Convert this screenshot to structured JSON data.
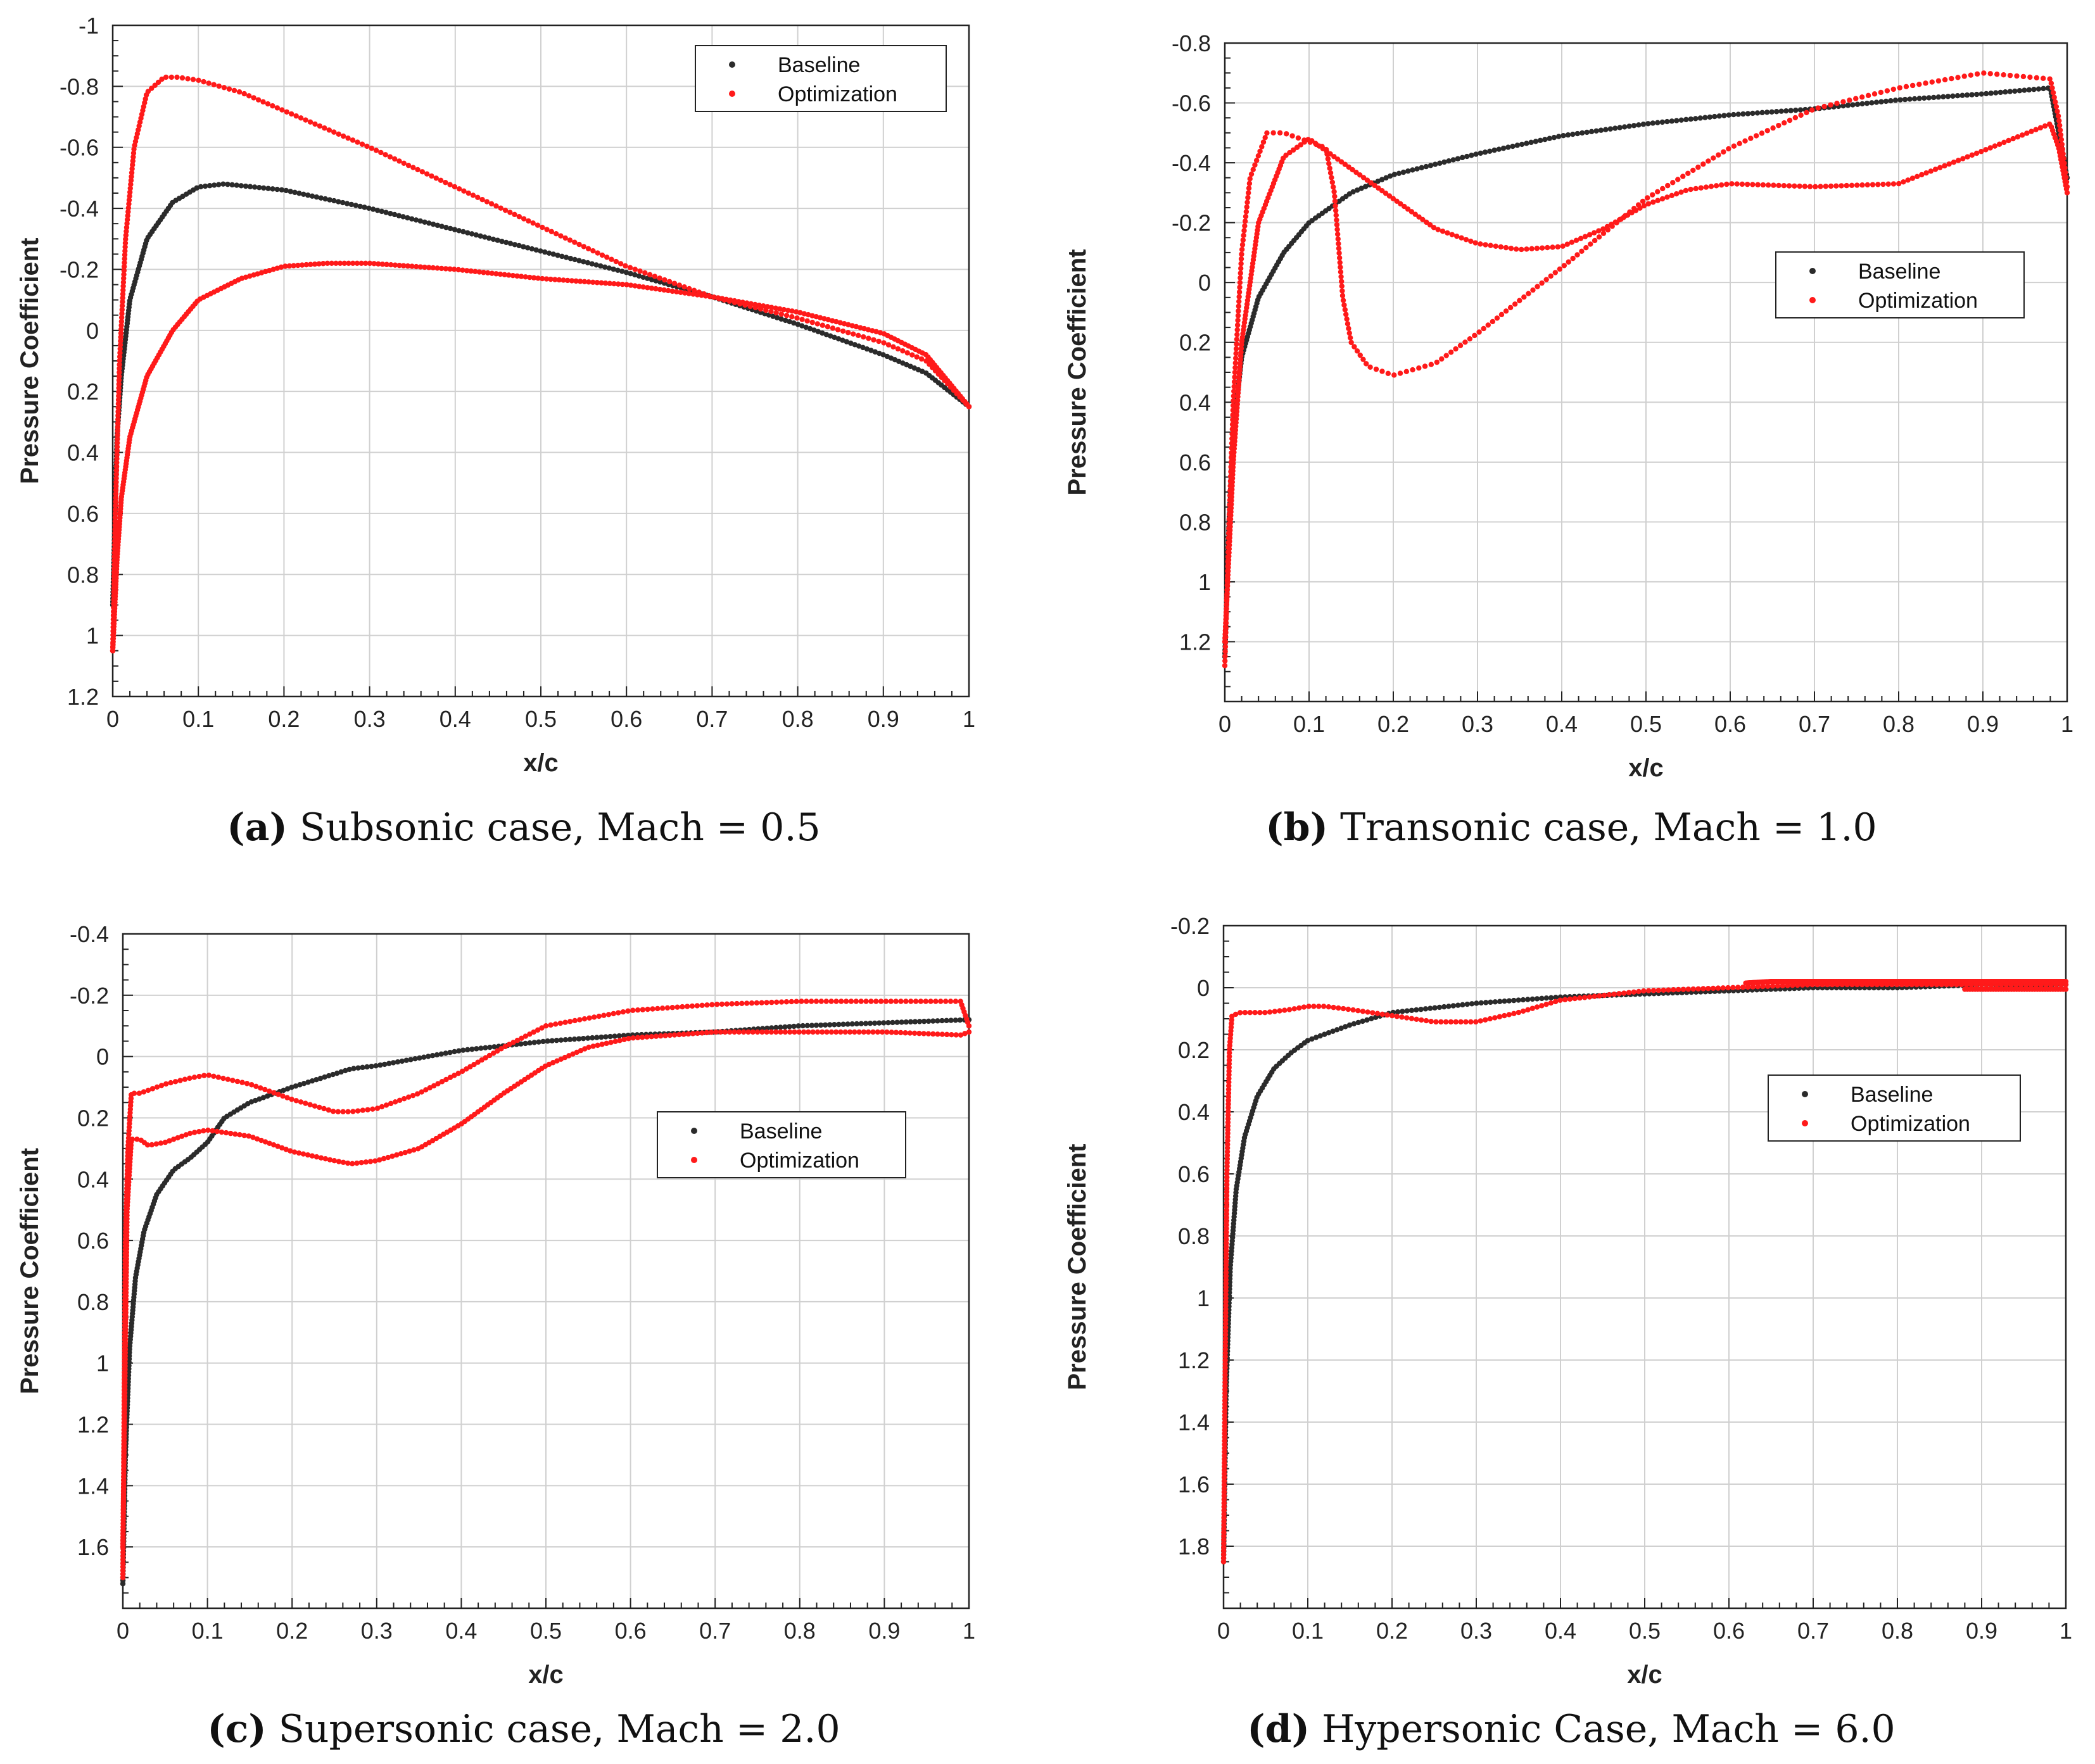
{
  "colors": {
    "baseline": "#2b2b2b",
    "optimization": "#ff1a1a",
    "grid": "#d0d0d0",
    "axis": "#222222"
  },
  "chart_data": [
    {
      "type": "scatter",
      "caption": {
        "letter": "(a)",
        "text": "Subsonic case, Mach = 0.5"
      },
      "xlabel": "x/c",
      "ylabel": "Pressure Coefficient",
      "xlim": [
        0,
        1
      ],
      "ylim": [
        1.2,
        -1
      ],
      "x_ticks": [
        "0",
        "0.1",
        "0.2",
        "0.3",
        "0.4",
        "0.5",
        "0.6",
        "0.7",
        "0.8",
        "0.9",
        "1"
      ],
      "y_ticks": [
        "-1",
        "-0.8",
        "-0.6",
        "-0.4",
        "-0.2",
        "0",
        "0.2",
        "0.4",
        "0.6",
        "0.8",
        "1",
        "1.2"
      ],
      "x_tick_values": [
        0,
        0.1,
        0.2,
        0.3,
        0.4,
        0.5,
        0.6,
        0.7,
        0.8,
        0.9,
        1
      ],
      "y_tick_values": [
        -1,
        -0.8,
        -0.6,
        -0.4,
        -0.2,
        0,
        0.2,
        0.4,
        0.6,
        0.8,
        1,
        1.2
      ],
      "grid": true,
      "legend": {
        "position": "top-right",
        "entries": [
          "Baseline",
          "Optimization"
        ]
      },
      "series": [
        {
          "name": "Baseline",
          "curves": [
            {
              "x": [
                0,
                0.005,
                0.01,
                0.02,
                0.04,
                0.07,
                0.1,
                0.13,
                0.2,
                0.3,
                0.4,
                0.5,
                0.6,
                0.7,
                0.8,
                0.9,
                0.95,
                1
              ],
              "y": [
                0.9,
                0.35,
                0.15,
                -0.1,
                -0.3,
                -0.42,
                -0.47,
                -0.48,
                -0.46,
                -0.4,
                -0.33,
                -0.26,
                -0.19,
                -0.11,
                -0.02,
                0.08,
                0.14,
                0.25
              ]
            }
          ]
        },
        {
          "name": "Optimization",
          "curves": [
            {
              "x": [
                0,
                0.003,
                0.008,
                0.015,
                0.025,
                0.04,
                0.06,
                0.075,
                0.1,
                0.15,
                0.2,
                0.3,
                0.4,
                0.5,
                0.6,
                0.7,
                0.8,
                0.9,
                0.95,
                1
              ],
              "y": [
                1.05,
                0.6,
                0.1,
                -0.3,
                -0.6,
                -0.78,
                -0.83,
                -0.83,
                -0.82,
                -0.78,
                -0.72,
                -0.6,
                -0.47,
                -0.34,
                -0.21,
                -0.11,
                -0.04,
                0.04,
                0.1,
                0.25
              ]
            },
            {
              "x": [
                0,
                0.005,
                0.01,
                0.02,
                0.04,
                0.07,
                0.1,
                0.15,
                0.2,
                0.25,
                0.3,
                0.4,
                0.5,
                0.6,
                0.7,
                0.8,
                0.9,
                0.95,
                1
              ],
              "y": [
                1.05,
                0.75,
                0.55,
                0.35,
                0.15,
                0.0,
                -0.1,
                -0.17,
                -0.21,
                -0.22,
                -0.22,
                -0.2,
                -0.17,
                -0.15,
                -0.11,
                -0.06,
                0.01,
                0.08,
                0.25
              ]
            }
          ]
        }
      ]
    },
    {
      "type": "scatter",
      "caption": {
        "letter": "(b)",
        "text": "Transonic case, Mach = 1.0"
      },
      "xlabel": "x/c",
      "ylabel": "Pressure Coefficient",
      "xlim": [
        0,
        1
      ],
      "ylim": [
        1.4,
        -0.8
      ],
      "x_ticks": [
        "0",
        "0.1",
        "0.2",
        "0.3",
        "0.4",
        "0.5",
        "0.6",
        "0.7",
        "0.8",
        "0.9",
        "1"
      ],
      "y_ticks": [
        "-0.8",
        "-0.6",
        "-0.4",
        "-0.2",
        "0",
        "0.2",
        "0.4",
        "0.6",
        "0.8",
        "1",
        "1.2"
      ],
      "x_tick_values": [
        0,
        0.1,
        0.2,
        0.3,
        0.4,
        0.5,
        0.6,
        0.7,
        0.8,
        0.9,
        1
      ],
      "y_tick_values": [
        -0.8,
        -0.6,
        -0.4,
        -0.2,
        0,
        0.2,
        0.4,
        0.6,
        0.8,
        1,
        1.2
      ],
      "grid": true,
      "legend": {
        "position": "right",
        "entries": [
          "Baseline",
          "Optimization"
        ]
      },
      "series": [
        {
          "name": "Baseline",
          "curves": [
            {
              "x": [
                0,
                0.005,
                0.01,
                0.02,
                0.04,
                0.07,
                0.1,
                0.15,
                0.2,
                0.3,
                0.4,
                0.5,
                0.6,
                0.7,
                0.8,
                0.9,
                0.98,
                0.99,
                1
              ],
              "y": [
                1.25,
                0.8,
                0.5,
                0.25,
                0.05,
                -0.1,
                -0.2,
                -0.3,
                -0.36,
                -0.43,
                -0.49,
                -0.53,
                -0.56,
                -0.58,
                -0.61,
                -0.63,
                -0.65,
                -0.5,
                -0.35
              ]
            }
          ]
        },
        {
          "name": "Optimization",
          "curves": [
            {
              "x": [
                0,
                0.005,
                0.01,
                0.02,
                0.03,
                0.05,
                0.07,
                0.1,
                0.12,
                0.13,
                0.14,
                0.15,
                0.17,
                0.2,
                0.25,
                0.3,
                0.4,
                0.5,
                0.6,
                0.7,
                0.8,
                0.9,
                0.98,
                0.99,
                1
              ],
              "y": [
                1.28,
                0.8,
                0.4,
                -0.1,
                -0.35,
                -0.5,
                -0.5,
                -0.47,
                -0.45,
                -0.3,
                0.05,
                0.2,
                0.28,
                0.31,
                0.27,
                0.17,
                -0.05,
                -0.28,
                -0.45,
                -0.58,
                -0.65,
                -0.7,
                -0.68,
                -0.55,
                -0.32
              ]
            },
            {
              "x": [
                0,
                0.005,
                0.01,
                0.02,
                0.04,
                0.07,
                0.1,
                0.15,
                0.2,
                0.25,
                0.3,
                0.35,
                0.4,
                0.45,
                0.5,
                0.55,
                0.6,
                0.7,
                0.8,
                0.9,
                0.98,
                0.99,
                1
              ],
              "y": [
                1.2,
                0.9,
                0.6,
                0.2,
                -0.2,
                -0.42,
                -0.48,
                -0.38,
                -0.28,
                -0.18,
                -0.13,
                -0.11,
                -0.12,
                -0.18,
                -0.26,
                -0.31,
                -0.33,
                -0.32,
                -0.33,
                -0.44,
                -0.53,
                -0.45,
                -0.3
              ]
            }
          ]
        }
      ]
    },
    {
      "type": "scatter",
      "caption": {
        "letter": "(c)",
        "text": "Supersonic case, Mach = 2.0"
      },
      "xlabel": "x/c",
      "ylabel": "Pressure Coefficient",
      "xlim": [
        0,
        1
      ],
      "ylim": [
        1.8,
        -0.4
      ],
      "x_ticks": [
        "0",
        "0.1",
        "0.2",
        "0.3",
        "0.4",
        "0.5",
        "0.6",
        "0.7",
        "0.8",
        "0.9",
        "1"
      ],
      "y_ticks": [
        "-0.4",
        "-0.2",
        "0",
        "0.2",
        "0.4",
        "0.6",
        "0.8",
        "1",
        "1.2",
        "1.4",
        "1.6"
      ],
      "x_tick_values": [
        0,
        0.1,
        0.2,
        0.3,
        0.4,
        0.5,
        0.6,
        0.7,
        0.8,
        0.9,
        1
      ],
      "y_tick_values": [
        -0.4,
        -0.2,
        0,
        0.2,
        0.4,
        0.6,
        0.8,
        1,
        1.2,
        1.4,
        1.6
      ],
      "grid": true,
      "legend": {
        "position": "right",
        "entries": [
          "Baseline",
          "Optimization"
        ]
      },
      "series": [
        {
          "name": "Baseline",
          "curves": [
            {
              "x": [
                0,
                0.003,
                0.008,
                0.015,
                0.025,
                0.04,
                0.06,
                0.08,
                0.1,
                0.12,
                0.15,
                0.2,
                0.27,
                0.3,
                0.4,
                0.5,
                0.6,
                0.7,
                0.8,
                0.9,
                1
              ],
              "y": [
                1.72,
                1.3,
                0.95,
                0.72,
                0.57,
                0.45,
                0.37,
                0.33,
                0.28,
                0.2,
                0.15,
                0.1,
                0.04,
                0.03,
                -0.02,
                -0.05,
                -0.07,
                -0.08,
                -0.1,
                -0.11,
                -0.12
              ]
            }
          ]
        },
        {
          "name": "Optimization",
          "curves": [
            {
              "x": [
                0,
                0.003,
                0.006,
                0.01,
                0.02,
                0.05,
                0.08,
                0.1,
                0.15,
                0.2,
                0.25,
                0.27,
                0.3,
                0.35,
                0.4,
                0.45,
                0.5,
                0.6,
                0.7,
                0.8,
                0.9,
                0.99,
                1
              ],
              "y": [
                1.7,
                0.6,
                0.3,
                0.12,
                0.12,
                0.09,
                0.07,
                0.06,
                0.09,
                0.14,
                0.18,
                0.18,
                0.17,
                0.12,
                0.05,
                -0.03,
                -0.1,
                -0.15,
                -0.17,
                -0.18,
                -0.18,
                -0.18,
                -0.1
              ]
            },
            {
              "x": [
                0,
                0.005,
                0.01,
                0.02,
                0.03,
                0.05,
                0.08,
                0.1,
                0.15,
                0.2,
                0.25,
                0.27,
                0.3,
                0.35,
                0.4,
                0.45,
                0.5,
                0.55,
                0.6,
                0.7,
                0.8,
                0.9,
                0.99,
                1
              ],
              "y": [
                1.6,
                0.5,
                0.27,
                0.27,
                0.29,
                0.28,
                0.25,
                0.24,
                0.26,
                0.31,
                0.34,
                0.35,
                0.34,
                0.3,
                0.22,
                0.12,
                0.03,
                -0.03,
                -0.06,
                -0.08,
                -0.08,
                -0.08,
                -0.07,
                -0.08
              ]
            }
          ]
        }
      ]
    },
    {
      "type": "scatter",
      "caption": {
        "letter": "(d)",
        "text": "Hypersonic Case, Mach = 6.0"
      },
      "xlabel": "x/c",
      "ylabel": "Pressure Coefficient",
      "xlim": [
        0,
        1
      ],
      "ylim": [
        2.0,
        -0.2
      ],
      "x_ticks": [
        "0",
        "0.1",
        "0.2",
        "0.3",
        "0.4",
        "0.5",
        "0.6",
        "0.7",
        "0.8",
        "0.9",
        "1"
      ],
      "y_ticks": [
        "-0.2",
        "0",
        "0.2",
        "0.4",
        "0.6",
        "0.8",
        "1",
        "1.2",
        "1.4",
        "1.6",
        "1.8"
      ],
      "x_tick_values": [
        0,
        0.1,
        0.2,
        0.3,
        0.4,
        0.5,
        0.6,
        0.7,
        0.8,
        0.9,
        1
      ],
      "y_tick_values": [
        -0.2,
        0,
        0.2,
        0.4,
        0.6,
        0.8,
        1,
        1.2,
        1.4,
        1.6,
        1.8
      ],
      "grid": true,
      "legend": {
        "position": "right",
        "entries": [
          "Baseline",
          "Optimization"
        ]
      },
      "series": [
        {
          "name": "Baseline",
          "curves": [
            {
              "x": [
                0,
                0.003,
                0.008,
                0.015,
                0.025,
                0.04,
                0.06,
                0.08,
                0.1,
                0.15,
                0.2,
                0.3,
                0.4,
                0.5,
                0.6,
                0.7,
                0.8,
                0.9,
                1
              ],
              "y": [
                1.85,
                1.3,
                0.9,
                0.65,
                0.48,
                0.35,
                0.26,
                0.21,
                0.17,
                0.12,
                0.08,
                0.05,
                0.03,
                0.02,
                0.01,
                0.0,
                0.0,
                -0.01,
                -0.01
              ]
            }
          ]
        },
        {
          "name": "Optimization",
          "curves": [
            {
              "x": [
                0,
                0.002,
                0.004,
                0.007,
                0.01,
                0.02,
                0.05,
                0.08,
                0.1,
                0.12,
                0.15,
                0.2,
                0.25,
                0.3,
                0.35,
                0.4,
                0.5,
                0.6,
                0.7,
                0.8,
                0.9,
                1
              ],
              "y": [
                1.85,
                1.2,
                0.6,
                0.2,
                0.09,
                0.08,
                0.08,
                0.07,
                0.06,
                0.06,
                0.07,
                0.09,
                0.11,
                0.11,
                0.08,
                0.04,
                0.01,
                0.0,
                -0.01,
                -0.01,
                -0.01,
                -0.01
              ]
            },
            {
              "x": [
                0.62,
                0.65,
                0.7,
                0.75,
                0.8,
                0.85,
                0.88,
                0.9,
                0.95,
                1
              ],
              "y": [
                -0.015,
                -0.02,
                -0.02,
                -0.02,
                -0.02,
                -0.02,
                -0.02,
                -0.02,
                -0.02,
                -0.02
              ]
            },
            {
              "x": [
                0.88,
                0.9,
                0.95,
                1
              ],
              "y": [
                0.005,
                0.005,
                0.005,
                0.005
              ]
            }
          ]
        }
      ]
    }
  ]
}
